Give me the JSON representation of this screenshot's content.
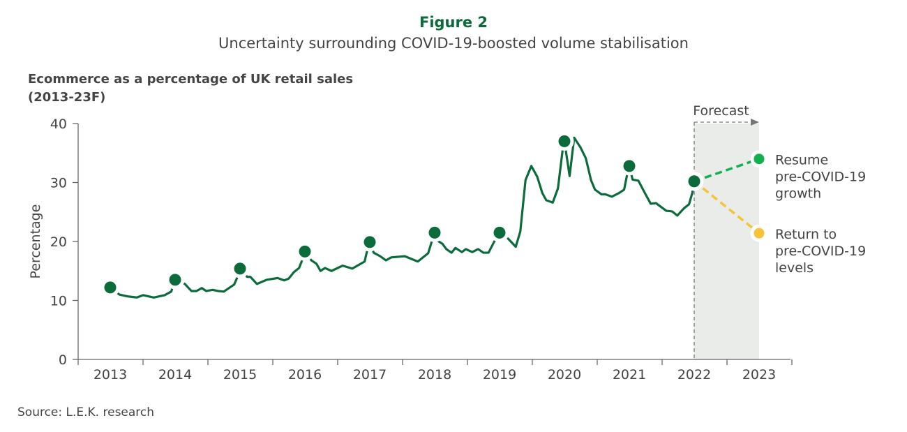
{
  "figure_label": "Figure 2",
  "subtitle": "Uncertainty surrounding COVID-19-boosted volume stabilisation",
  "source": "Source: L.E.K. research",
  "chart_data": {
    "type": "line",
    "title_lines": [
      "Ecommerce as a percentage of UK retail sales",
      "(2013-23F)"
    ],
    "xlabel": "",
    "ylabel": "Percentage",
    "ylim": [
      0,
      40
    ],
    "yticks": [
      0,
      10,
      20,
      30,
      40
    ],
    "xlim": [
      2012.5,
      2023.5
    ],
    "xticks": [
      "2013",
      "2014",
      "2015",
      "2016",
      "2017",
      "2018",
      "2019",
      "2020",
      "2021",
      "2022",
      "2023"
    ],
    "grid": false,
    "colors": {
      "line": "#0b6b3a",
      "resume": "#12b14e",
      "return": "#f6c33b",
      "forecast_band": "#e9ece9",
      "title": "#0b6b3a"
    },
    "series": [
      {
        "values": [
          [
            2013.0,
            12.2
          ],
          [
            2013.14,
            11.0
          ],
          [
            2013.26,
            10.7
          ],
          [
            2013.41,
            10.5
          ],
          [
            2013.51,
            10.9
          ],
          [
            2013.67,
            10.5
          ],
          [
            2013.84,
            10.9
          ],
          [
            2013.94,
            11.5
          ],
          [
            2014.0,
            13.5
          ],
          [
            2014.15,
            12.8
          ],
          [
            2014.25,
            11.6
          ],
          [
            2014.33,
            11.6
          ],
          [
            2014.41,
            12.1
          ],
          [
            2014.48,
            11.6
          ],
          [
            2014.58,
            11.8
          ],
          [
            2014.66,
            11.6
          ],
          [
            2014.75,
            11.5
          ],
          [
            2014.91,
            12.7
          ],
          [
            2014.95,
            13.7
          ],
          [
            2015.0,
            15.4
          ],
          [
            2015.11,
            14.0
          ],
          [
            2015.16,
            14.0
          ],
          [
            2015.26,
            12.8
          ],
          [
            2015.41,
            13.5
          ],
          [
            2015.58,
            13.8
          ],
          [
            2015.68,
            13.4
          ],
          [
            2015.75,
            13.7
          ],
          [
            2015.83,
            14.8
          ],
          [
            2015.91,
            15.5
          ],
          [
            2015.95,
            16.6
          ],
          [
            2016.0,
            18.3
          ],
          [
            2016.1,
            16.8
          ],
          [
            2016.18,
            16.2
          ],
          [
            2016.24,
            15.0
          ],
          [
            2016.31,
            15.5
          ],
          [
            2016.41,
            15.0
          ],
          [
            2016.58,
            15.9
          ],
          [
            2016.73,
            15.4
          ],
          [
            2016.92,
            16.6
          ],
          [
            2016.95,
            18.0
          ],
          [
            2017.0,
            19.9
          ],
          [
            2017.06,
            18.1
          ],
          [
            2017.16,
            17.5
          ],
          [
            2017.25,
            16.8
          ],
          [
            2017.33,
            17.3
          ],
          [
            2017.54,
            17.5
          ],
          [
            2017.74,
            16.6
          ],
          [
            2017.9,
            18.0
          ],
          [
            2017.95,
            19.8
          ],
          [
            2018.0,
            21.5
          ],
          [
            2018.05,
            20.1
          ],
          [
            2018.12,
            19.6
          ],
          [
            2018.18,
            18.7
          ],
          [
            2018.26,
            18.1
          ],
          [
            2018.32,
            18.9
          ],
          [
            2018.42,
            18.2
          ],
          [
            2018.48,
            18.7
          ],
          [
            2018.58,
            18.2
          ],
          [
            2018.67,
            18.7
          ],
          [
            2018.75,
            18.1
          ],
          [
            2018.83,
            18.1
          ],
          [
            2018.91,
            19.8
          ],
          [
            2019.0,
            21.5
          ],
          [
            2019.13,
            20.5
          ],
          [
            2019.25,
            19.1
          ],
          [
            2019.32,
            21.7
          ],
          [
            2019.4,
            30.4
          ],
          [
            2019.49,
            32.8
          ],
          [
            2019.58,
            31.0
          ],
          [
            2019.66,
            28.2
          ],
          [
            2019.72,
            27.0
          ],
          [
            2019.82,
            26.6
          ],
          [
            2019.9,
            29.0
          ],
          [
            2019.97,
            35.3
          ],
          [
            2020.0,
            37.0
          ],
          [
            2020.08,
            31.1
          ],
          [
            2020.15,
            37.6
          ],
          [
            2020.25,
            35.9
          ],
          [
            2020.33,
            34.1
          ],
          [
            2020.41,
            30.4
          ],
          [
            2020.47,
            28.8
          ],
          [
            2020.57,
            28.0
          ],
          [
            2020.63,
            28.0
          ],
          [
            2020.73,
            27.6
          ],
          [
            2020.84,
            28.2
          ],
          [
            2020.92,
            28.8
          ],
          [
            2020.96,
            31.0
          ],
          [
            2021.0,
            32.8
          ],
          [
            2021.05,
            30.5
          ],
          [
            2021.14,
            30.3
          ],
          [
            2021.25,
            28.0
          ],
          [
            2021.33,
            26.4
          ],
          [
            2021.41,
            26.5
          ],
          [
            2021.57,
            25.2
          ],
          [
            2021.66,
            25.1
          ],
          [
            2021.74,
            24.4
          ],
          [
            2021.84,
            25.6
          ],
          [
            2021.92,
            26.3
          ],
          [
            2021.97,
            28.2
          ],
          [
            2022.0,
            30.2
          ]
        ]
      }
    ],
    "annual_markers": [
      [
        2013,
        12.2
      ],
      [
        2014,
        13.5
      ],
      [
        2015,
        15.4
      ],
      [
        2016,
        18.3
      ],
      [
        2017,
        19.9
      ],
      [
        2018,
        21.5
      ],
      [
        2019,
        21.5
      ],
      [
        2020,
        37.0
      ],
      [
        2021,
        32.8
      ],
      [
        2022,
        30.2
      ]
    ],
    "forecast": {
      "label": "Forecast",
      "range": [
        2022,
        2023
      ],
      "scenarios": [
        {
          "name": "resume",
          "label_lines": [
            "Resume",
            "pre-COVID-19",
            "growth"
          ],
          "from": [
            2022,
            30.2
          ],
          "to": [
            2023,
            34.0
          ]
        },
        {
          "name": "return",
          "label_lines": [
            "Return to",
            "pre-COVID-19",
            "levels"
          ],
          "from": [
            2022,
            30.2
          ],
          "to": [
            2023,
            21.4
          ]
        }
      ]
    }
  }
}
